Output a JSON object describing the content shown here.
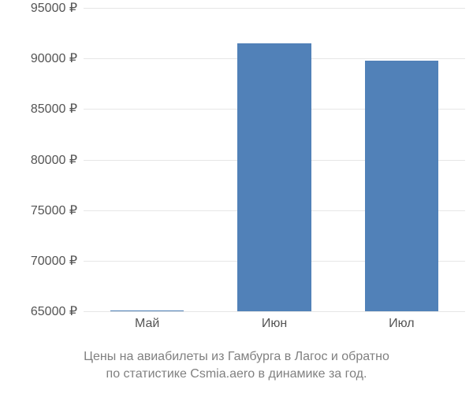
{
  "chart": {
    "type": "bar",
    "background_color": "#ffffff",
    "grid_color": "#e6e6e6",
    "bar_color": "#5181b8",
    "label_color": "#545454",
    "caption_color": "#808080",
    "label_fontsize": 16,
    "caption_fontsize": 16,
    "ylim": [
      65000,
      95000
    ],
    "ytick_step": 5000,
    "bar_width_ratio": 0.58,
    "y_ticks": [
      {
        "value": 65000,
        "label": "65000 ₽"
      },
      {
        "value": 70000,
        "label": "70000 ₽"
      },
      {
        "value": 75000,
        "label": "75000 ₽"
      },
      {
        "value": 80000,
        "label": "80000 ₽"
      },
      {
        "value": 85000,
        "label": "85000 ₽"
      },
      {
        "value": 90000,
        "label": "90000 ₽"
      },
      {
        "value": 95000,
        "label": "95000 ₽"
      }
    ],
    "categories": [
      "Май",
      "Июн",
      "Июл"
    ],
    "values": [
      65100,
      91500,
      89800
    ]
  },
  "caption": {
    "line1": "Цены на авиабилеты из Гамбурга в Лагос и обратно",
    "line2": "по статистике Csmia.aero в динамике за год."
  }
}
